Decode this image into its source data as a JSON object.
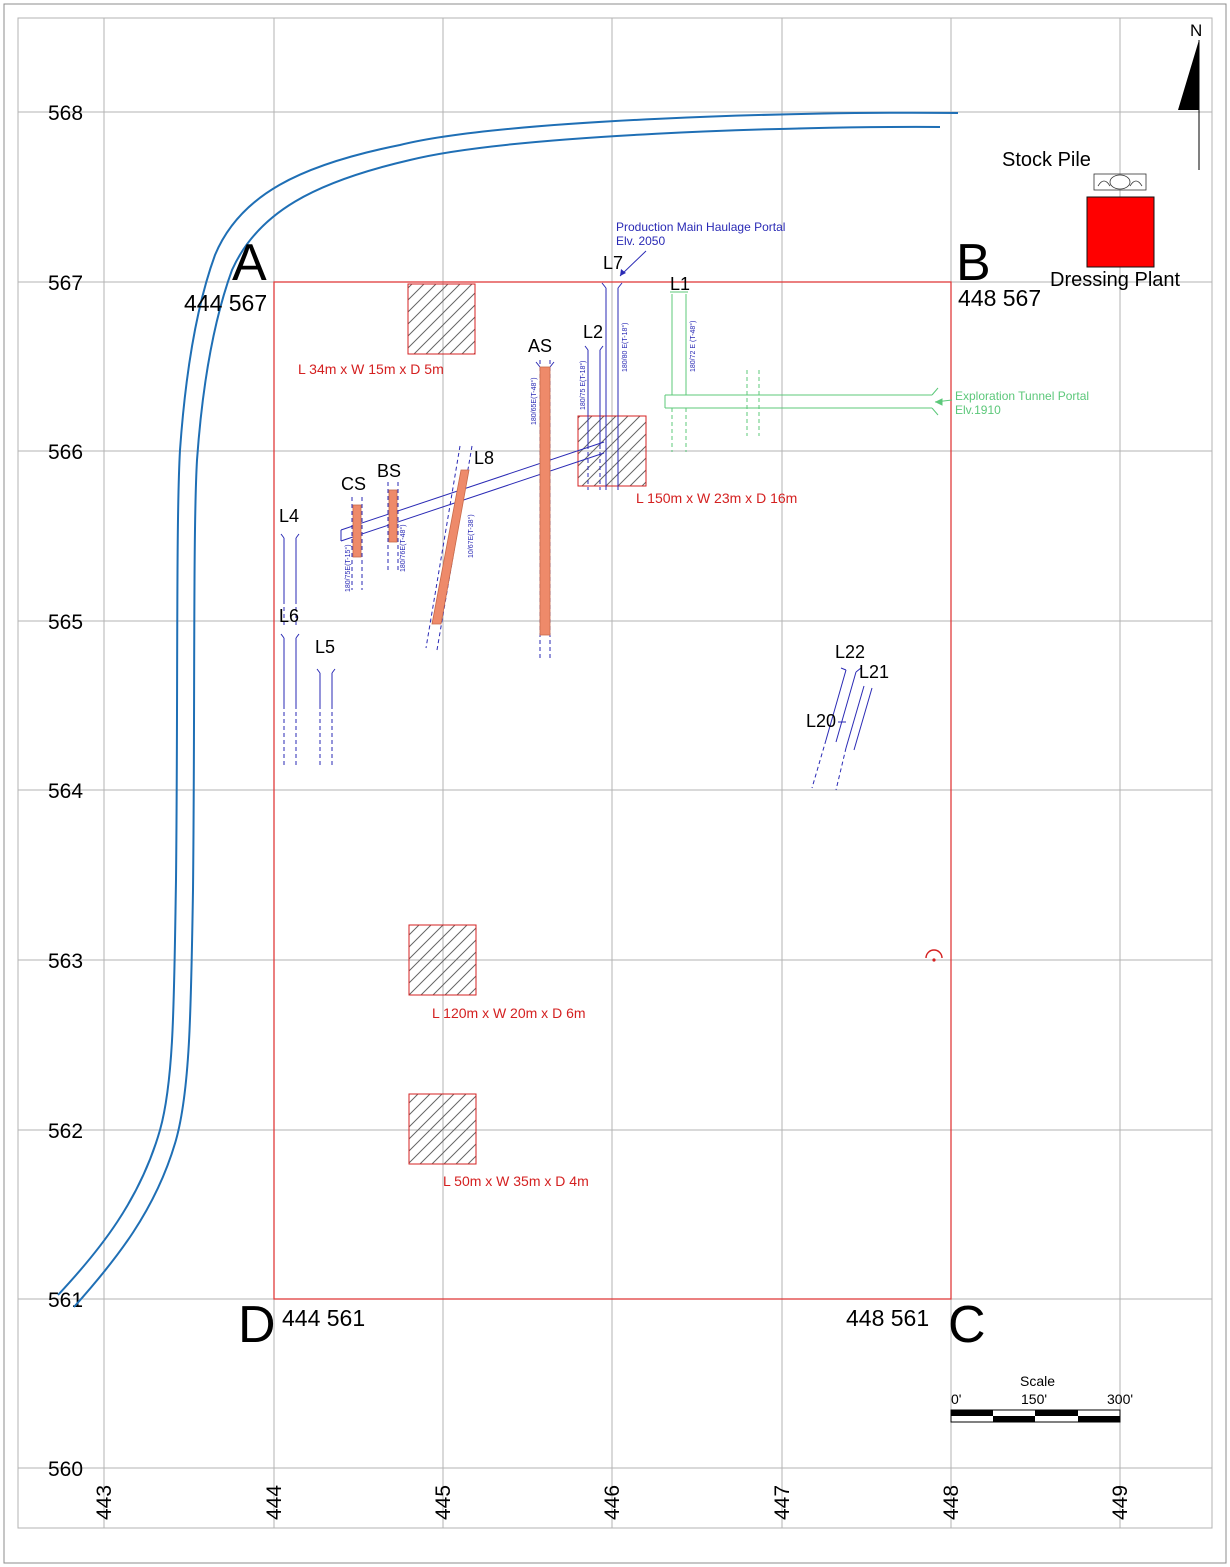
{
  "grid": {
    "eastings": [
      443,
      444,
      445,
      446,
      447,
      448,
      449
    ],
    "northings": [
      560,
      561,
      562,
      563,
      564,
      565,
      566,
      567,
      568
    ]
  },
  "north_arrow": {
    "label": "N"
  },
  "corners": {
    "A": {
      "letter": "A",
      "coord": "444 567"
    },
    "B": {
      "letter": "B",
      "coord": "448 567"
    },
    "C": {
      "letter": "C",
      "coord": "448 561"
    },
    "D": {
      "letter": "D",
      "coord": "444 561"
    }
  },
  "facilities": {
    "stock_pile": "Stock Pile",
    "dressing_plant": "Dressing Plant"
  },
  "portals": {
    "production": {
      "line1": "Production Main Haulage Portal",
      "line2": "Elv. 2050"
    },
    "exploration": {
      "line1": "Exploration Tunnel Portal",
      "line2": "Elv.1910"
    }
  },
  "levels": [
    "L7",
    "L1",
    "L2",
    "AS",
    "L8",
    "CS",
    "BS",
    "L4",
    "L6",
    "L5",
    "L22",
    "L21",
    "L20"
  ],
  "dip_tags": [
    "180/80 E(T-18°)",
    "180/72 E (T-48°)",
    "180/75 E(T-18°)",
    "180/65E(T-48°)",
    "10/67E(T-38°)",
    "180/75E(T-15°)",
    "180/76E(T-48°)"
  ],
  "work_areas": [
    "L 34m x W 15m x D 5m",
    "L 150m x W 23m x D 16m",
    "L 120m x W 20m x D 6m",
    "L 50m x W 35m x D 4m"
  ],
  "scale": {
    "title": "Scale",
    "labels": [
      "0'",
      "150'",
      "300'"
    ]
  },
  "colors": {
    "road": "#1f6fb5",
    "boundary": "#e03b3b",
    "tunnel": "#2a2ab5",
    "exploration": "#5cc87a",
    "ore_body": "#ee8a6a",
    "plant": "#ff0000"
  }
}
